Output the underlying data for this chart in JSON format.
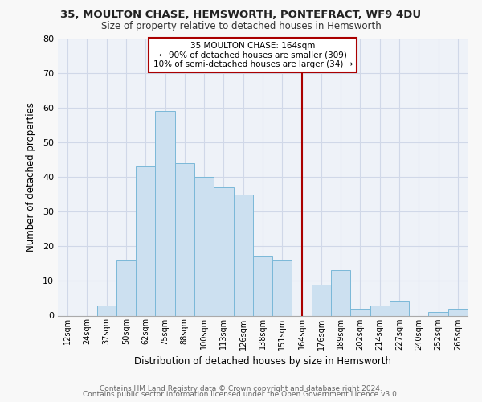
{
  "title": "35, MOULTON CHASE, HEMSWORTH, PONTEFRACT, WF9 4DU",
  "subtitle": "Size of property relative to detached houses in Hemsworth",
  "xlabel": "Distribution of detached houses by size in Hemsworth",
  "ylabel": "Number of detached properties",
  "footer_line1": "Contains HM Land Registry data © Crown copyright and database right 2024.",
  "footer_line2": "Contains public sector information licensed under the Open Government Licence v3.0.",
  "bin_labels": [
    "12sqm",
    "24sqm",
    "37sqm",
    "50sqm",
    "62sqm",
    "75sqm",
    "88sqm",
    "100sqm",
    "113sqm",
    "126sqm",
    "138sqm",
    "151sqm",
    "164sqm",
    "176sqm",
    "189sqm",
    "202sqm",
    "214sqm",
    "227sqm",
    "240sqm",
    "252sqm",
    "265sqm"
  ],
  "bar_heights": [
    0,
    0,
    3,
    16,
    43,
    59,
    44,
    40,
    37,
    35,
    17,
    16,
    0,
    9,
    13,
    2,
    3,
    4,
    0,
    1,
    2
  ],
  "bar_color": "#cce0f0",
  "bar_edge_color": "#7ab8d8",
  "vline_x_idx": 12,
  "vline_color": "#aa0000",
  "annotation_line1": "35 MOULTON CHASE: 164sqm",
  "annotation_line2": "← 90% of detached houses are smaller (309)",
  "annotation_line3": "10% of semi-detached houses are larger (34) →",
  "annotation_box_facecolor": "#ffffff",
  "annotation_box_edgecolor": "#aa0000",
  "ylim": [
    0,
    80
  ],
  "yticks": [
    0,
    10,
    20,
    30,
    40,
    50,
    60,
    70,
    80
  ],
  "grid_color": "#d0d8e8",
  "plot_bg_color": "#eef2f8",
  "fig_bg_color": "#f8f8f8"
}
